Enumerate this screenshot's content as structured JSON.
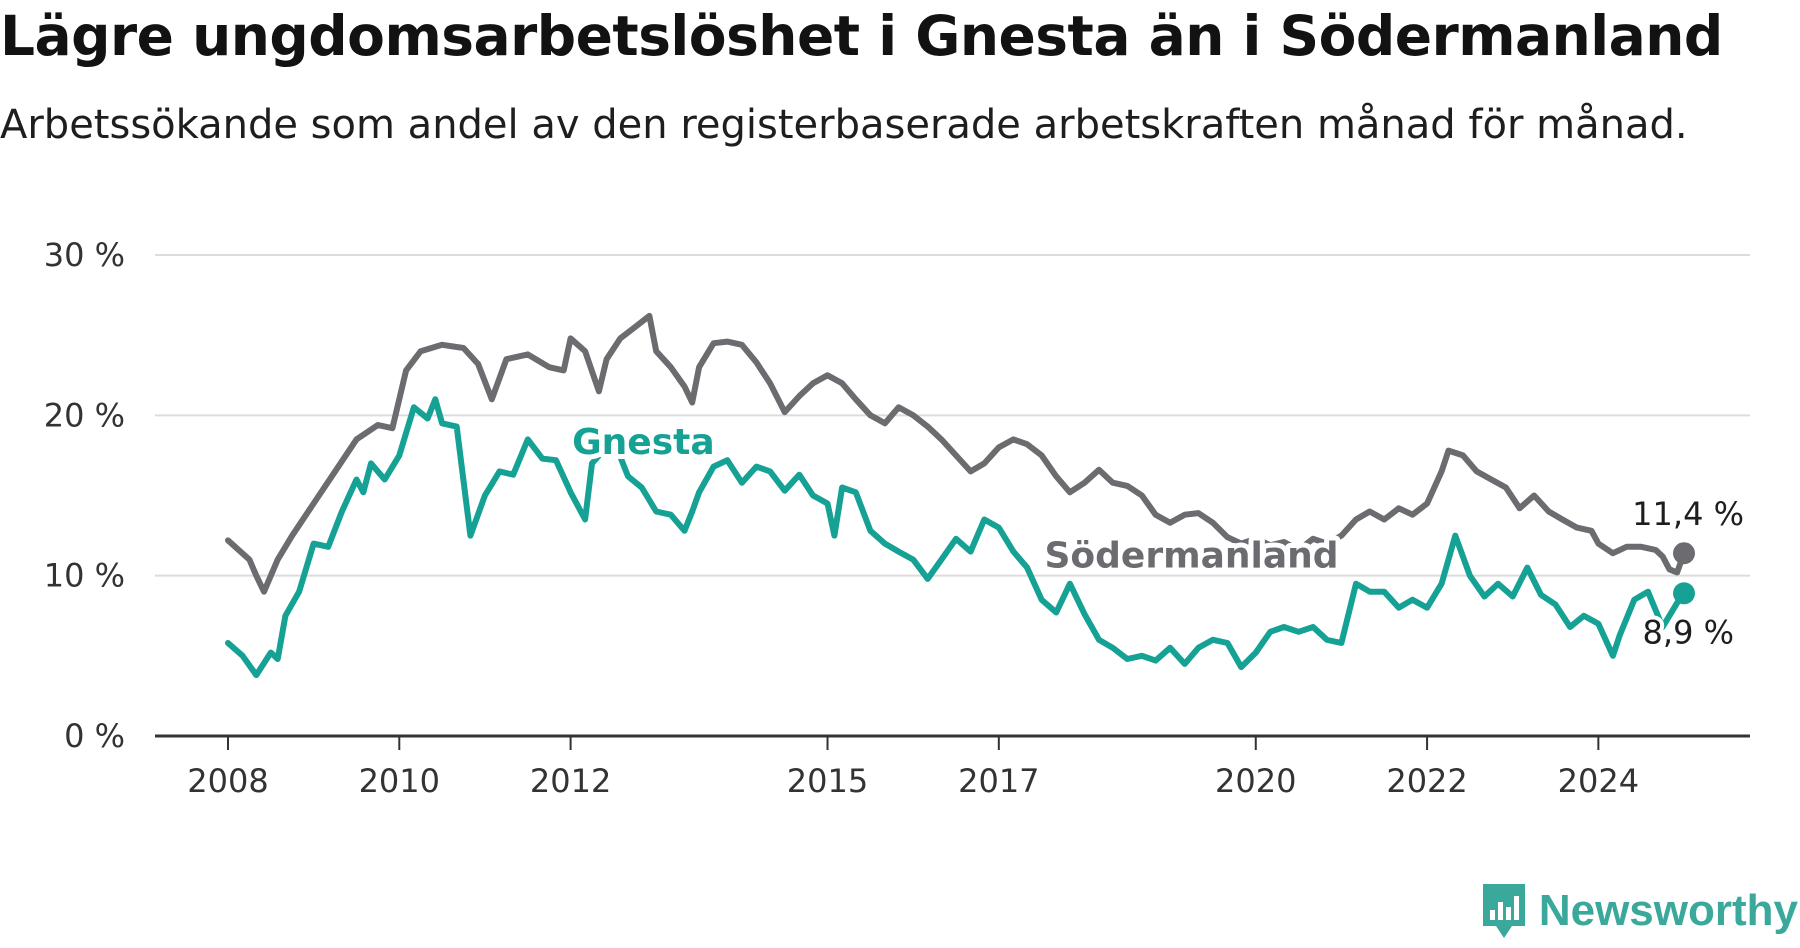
{
  "header": {
    "title": "Lägre ungdomsarbetslöshet i Gnesta än i Södermanland",
    "subtitle": "Arbetssökande som andel av den registerbaserade arbetskraften månad för månad."
  },
  "brand": {
    "name": "Newsworthy",
    "icon": "newsworthy-logo-icon",
    "color": "#3aa89a"
  },
  "chart_data": {
    "type": "line",
    "title": "Lägre ungdomsarbetslöshet i Gnesta än i Södermanland",
    "subtitle": "Arbetssökande som andel av den registerbaserade arbetskraften månad för månad.",
    "xlabel": "",
    "ylabel": "",
    "xlim": [
      2008.0,
      2025.0
    ],
    "ylim": [
      0,
      30
    ],
    "yticks": [
      0,
      10,
      20,
      30
    ],
    "ytick_labels": [
      "0 %",
      "10 %",
      "20 %",
      "30 %"
    ],
    "xticks": [
      2008,
      2010,
      2012,
      2015,
      2017,
      2020,
      2022,
      2024
    ],
    "xtick_labels": [
      "2008",
      "2010",
      "2012",
      "2015",
      "2017",
      "2020",
      "2022",
      "2024"
    ],
    "grid": "horizontal",
    "legend": "inline labels on lines",
    "series": [
      {
        "name": "Södermanland",
        "color": "#6b6b70",
        "end_label": "11,4 %",
        "points": [
          [
            2008.0,
            12.2
          ],
          [
            2008.25,
            11.0
          ],
          [
            2008.33,
            10.0
          ],
          [
            2008.42,
            9.0
          ],
          [
            2008.58,
            11.0
          ],
          [
            2008.75,
            12.5
          ],
          [
            2009.0,
            14.5
          ],
          [
            2009.25,
            16.5
          ],
          [
            2009.5,
            18.5
          ],
          [
            2009.75,
            19.4
          ],
          [
            2009.92,
            19.2
          ],
          [
            2010.08,
            22.8
          ],
          [
            2010.25,
            24.0
          ],
          [
            2010.5,
            24.4
          ],
          [
            2010.75,
            24.2
          ],
          [
            2010.92,
            23.2
          ],
          [
            2011.08,
            21.0
          ],
          [
            2011.25,
            23.5
          ],
          [
            2011.5,
            23.8
          ],
          [
            2011.75,
            23.0
          ],
          [
            2011.92,
            22.8
          ],
          [
            2012.0,
            24.8
          ],
          [
            2012.17,
            24.0
          ],
          [
            2012.33,
            21.5
          ],
          [
            2012.42,
            23.5
          ],
          [
            2012.58,
            24.8
          ],
          [
            2012.75,
            25.5
          ],
          [
            2012.92,
            26.2
          ],
          [
            2013.0,
            24.0
          ],
          [
            2013.17,
            23.0
          ],
          [
            2013.33,
            21.8
          ],
          [
            2013.42,
            20.8
          ],
          [
            2013.5,
            23.0
          ],
          [
            2013.67,
            24.5
          ],
          [
            2013.83,
            24.6
          ],
          [
            2014.0,
            24.4
          ],
          [
            2014.17,
            23.3
          ],
          [
            2014.33,
            22.0
          ],
          [
            2014.5,
            20.2
          ],
          [
            2014.67,
            21.2
          ],
          [
            2014.83,
            22.0
          ],
          [
            2015.0,
            22.5
          ],
          [
            2015.17,
            22.0
          ],
          [
            2015.33,
            21.0
          ],
          [
            2015.5,
            20.0
          ],
          [
            2015.67,
            19.5
          ],
          [
            2015.83,
            20.5
          ],
          [
            2016.0,
            20.0
          ],
          [
            2016.17,
            19.3
          ],
          [
            2016.33,
            18.5
          ],
          [
            2016.5,
            17.5
          ],
          [
            2016.67,
            16.5
          ],
          [
            2016.83,
            17.0
          ],
          [
            2017.0,
            18.0
          ],
          [
            2017.17,
            18.5
          ],
          [
            2017.33,
            18.2
          ],
          [
            2017.5,
            17.5
          ],
          [
            2017.67,
            16.2
          ],
          [
            2017.83,
            15.2
          ],
          [
            2018.0,
            15.8
          ],
          [
            2018.17,
            16.6
          ],
          [
            2018.33,
            15.8
          ],
          [
            2018.5,
            15.6
          ],
          [
            2018.67,
            15.0
          ],
          [
            2018.83,
            13.8
          ],
          [
            2019.0,
            13.3
          ],
          [
            2019.17,
            13.8
          ],
          [
            2019.33,
            13.9
          ],
          [
            2019.5,
            13.3
          ],
          [
            2019.67,
            12.4
          ],
          [
            2019.83,
            12.0
          ],
          [
            2020.0,
            12.3
          ],
          [
            2020.17,
            11.9
          ],
          [
            2020.33,
            12.1
          ],
          [
            2020.5,
            11.6
          ],
          [
            2020.67,
            12.3
          ],
          [
            2020.83,
            12.0
          ],
          [
            2021.0,
            12.5
          ],
          [
            2021.17,
            13.5
          ],
          [
            2021.33,
            14.0
          ],
          [
            2021.5,
            13.5
          ],
          [
            2021.67,
            14.2
          ],
          [
            2021.83,
            13.8
          ],
          [
            2022.0,
            14.5
          ],
          [
            2022.17,
            16.5
          ],
          [
            2022.25,
            17.8
          ],
          [
            2022.42,
            17.5
          ],
          [
            2022.58,
            16.5
          ],
          [
            2022.75,
            16.0
          ],
          [
            2022.92,
            15.5
          ],
          [
            2023.08,
            14.2
          ],
          [
            2023.25,
            15.0
          ],
          [
            2023.42,
            14.0
          ],
          [
            2023.58,
            13.5
          ],
          [
            2023.75,
            13.0
          ],
          [
            2023.92,
            12.8
          ],
          [
            2024.0,
            12.0
          ],
          [
            2024.17,
            11.4
          ],
          [
            2024.33,
            11.8
          ],
          [
            2024.5,
            11.8
          ],
          [
            2024.67,
            11.6
          ],
          [
            2024.75,
            11.2
          ],
          [
            2024.83,
            10.4
          ],
          [
            2024.92,
            10.2
          ],
          [
            2025.0,
            11.4
          ]
        ]
      },
      {
        "name": "Gnesta",
        "color": "#16a195",
        "end_label": "8,9 %",
        "points": [
          [
            2008.0,
            5.8
          ],
          [
            2008.17,
            5.0
          ],
          [
            2008.33,
            3.8
          ],
          [
            2008.5,
            5.2
          ],
          [
            2008.58,
            4.8
          ],
          [
            2008.67,
            7.5
          ],
          [
            2008.83,
            9.0
          ],
          [
            2009.0,
            12.0
          ],
          [
            2009.17,
            11.8
          ],
          [
            2009.33,
            14.0
          ],
          [
            2009.5,
            16.0
          ],
          [
            2009.58,
            15.2
          ],
          [
            2009.67,
            17.0
          ],
          [
            2009.83,
            16.0
          ],
          [
            2010.0,
            17.5
          ],
          [
            2010.17,
            20.5
          ],
          [
            2010.33,
            19.8
          ],
          [
            2010.42,
            21.0
          ],
          [
            2010.5,
            19.5
          ],
          [
            2010.67,
            19.3
          ],
          [
            2010.83,
            12.5
          ],
          [
            2011.0,
            15.0
          ],
          [
            2011.17,
            16.5
          ],
          [
            2011.33,
            16.3
          ],
          [
            2011.5,
            18.5
          ],
          [
            2011.67,
            17.3
          ],
          [
            2011.83,
            17.2
          ],
          [
            2012.0,
            15.2
          ],
          [
            2012.17,
            13.5
          ],
          [
            2012.25,
            17.0
          ],
          [
            2012.5,
            18.5
          ],
          [
            2012.67,
            16.2
          ],
          [
            2012.83,
            15.5
          ],
          [
            2013.0,
            14.0
          ],
          [
            2013.17,
            13.8
          ],
          [
            2013.33,
            12.8
          ],
          [
            2013.42,
            14.0
          ],
          [
            2013.5,
            15.2
          ],
          [
            2013.67,
            16.8
          ],
          [
            2013.83,
            17.2
          ],
          [
            2014.0,
            15.8
          ],
          [
            2014.17,
            16.8
          ],
          [
            2014.33,
            16.5
          ],
          [
            2014.5,
            15.3
          ],
          [
            2014.67,
            16.3
          ],
          [
            2014.83,
            15.0
          ],
          [
            2015.0,
            14.5
          ],
          [
            2015.08,
            12.5
          ],
          [
            2015.17,
            15.5
          ],
          [
            2015.33,
            15.2
          ],
          [
            2015.5,
            12.8
          ],
          [
            2015.67,
            12.0
          ],
          [
            2015.83,
            11.5
          ],
          [
            2016.0,
            11.0
          ],
          [
            2016.17,
            9.8
          ],
          [
            2016.33,
            11.0
          ],
          [
            2016.5,
            12.3
          ],
          [
            2016.67,
            11.5
          ],
          [
            2016.83,
            13.5
          ],
          [
            2017.0,
            13.0
          ],
          [
            2017.17,
            11.5
          ],
          [
            2017.33,
            10.5
          ],
          [
            2017.5,
            8.5
          ],
          [
            2017.67,
            7.7
          ],
          [
            2017.83,
            9.5
          ],
          [
            2018.0,
            7.6
          ],
          [
            2018.17,
            6.0
          ],
          [
            2018.33,
            5.5
          ],
          [
            2018.5,
            4.8
          ],
          [
            2018.67,
            5.0
          ],
          [
            2018.83,
            4.7
          ],
          [
            2019.0,
            5.5
          ],
          [
            2019.17,
            4.5
          ],
          [
            2019.33,
            5.5
          ],
          [
            2019.5,
            6.0
          ],
          [
            2019.67,
            5.8
          ],
          [
            2019.83,
            4.3
          ],
          [
            2020.0,
            5.2
          ],
          [
            2020.17,
            6.5
          ],
          [
            2020.33,
            6.8
          ],
          [
            2020.5,
            6.5
          ],
          [
            2020.67,
            6.8
          ],
          [
            2020.83,
            6.0
          ],
          [
            2021.0,
            5.8
          ],
          [
            2021.17,
            9.5
          ],
          [
            2021.33,
            9.0
          ],
          [
            2021.5,
            9.0
          ],
          [
            2021.67,
            8.0
          ],
          [
            2021.83,
            8.5
          ],
          [
            2022.0,
            8.0
          ],
          [
            2022.17,
            9.5
          ],
          [
            2022.33,
            12.5
          ],
          [
            2022.5,
            10.0
          ],
          [
            2022.67,
            8.7
          ],
          [
            2022.83,
            9.5
          ],
          [
            2023.0,
            8.7
          ],
          [
            2023.17,
            10.5
          ],
          [
            2023.33,
            8.8
          ],
          [
            2023.5,
            8.2
          ],
          [
            2023.67,
            6.8
          ],
          [
            2023.83,
            7.5
          ],
          [
            2024.0,
            7.0
          ],
          [
            2024.17,
            5.0
          ],
          [
            2024.25,
            6.3
          ],
          [
            2024.42,
            8.5
          ],
          [
            2024.58,
            9.0
          ],
          [
            2024.75,
            6.8
          ],
          [
            2024.83,
            7.5
          ],
          [
            2024.92,
            8.3
          ],
          [
            2025.0,
            8.9
          ]
        ]
      }
    ]
  }
}
